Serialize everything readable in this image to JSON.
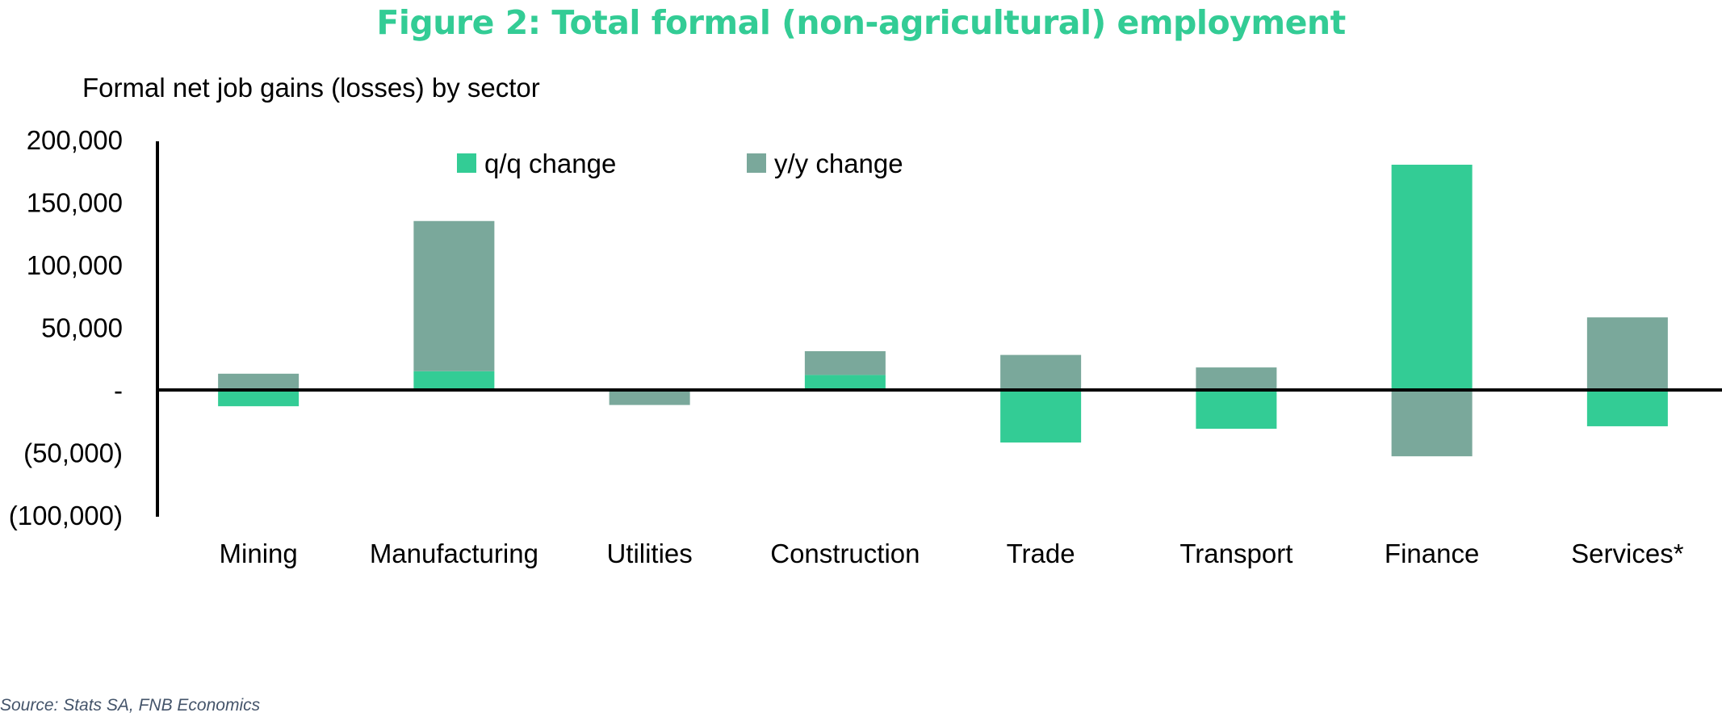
{
  "title": "Figure 2: Total formal (non-agricultural) employment",
  "subtitle": "Formal net job gains (losses) by sector",
  "source": "Source: Stats SA, FNB Economics",
  "colors": {
    "qq": "#33cc95",
    "yy": "#7aa89b",
    "title": "#33cc95",
    "axis": "#000000"
  },
  "chart_data": {
    "type": "bar",
    "stacked": true,
    "categories": [
      "Mining",
      "Manufacturing",
      "Utilities",
      "Construction",
      "Trade",
      "Transport",
      "Finance",
      "Services*"
    ],
    "series": [
      {
        "name": "q/q change",
        "color": "#33cc95",
        "values": [
          -13000,
          15000,
          0,
          12000,
          -42000,
          -31000,
          180000,
          -29000
        ]
      },
      {
        "name": "y/y change",
        "color": "#7aa89b",
        "values": [
          13000,
          120000,
          -12000,
          19000,
          28000,
          18000,
          -53000,
          58000
        ]
      }
    ],
    "ylim": [
      -100000,
      200000
    ],
    "yticks": [
      200000,
      150000,
      100000,
      50000,
      0,
      -50000,
      -100000
    ],
    "ytick_labels": [
      "200,000",
      "150,000",
      "100,000",
      "50,000",
      "-",
      "(50,000)",
      "(100,000)"
    ],
    "legend": "top",
    "grid": false
  }
}
